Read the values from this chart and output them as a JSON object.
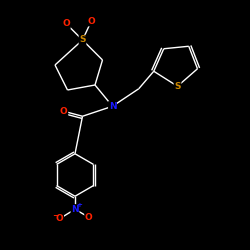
{
  "background_color": "#000000",
  "bond_color": "#ffffff",
  "atom_colors": {
    "O": "#ff2200",
    "N": "#1a1aff",
    "S_sulfone": "#cc8800",
    "S_thio": "#cc8800",
    "N_nitro": "#1a1aff",
    "O_nitro": "#ff2200"
  },
  "lw": 1.0,
  "fs": 6.5,
  "xlim": [
    0,
    10
  ],
  "ylim": [
    0,
    10
  ]
}
